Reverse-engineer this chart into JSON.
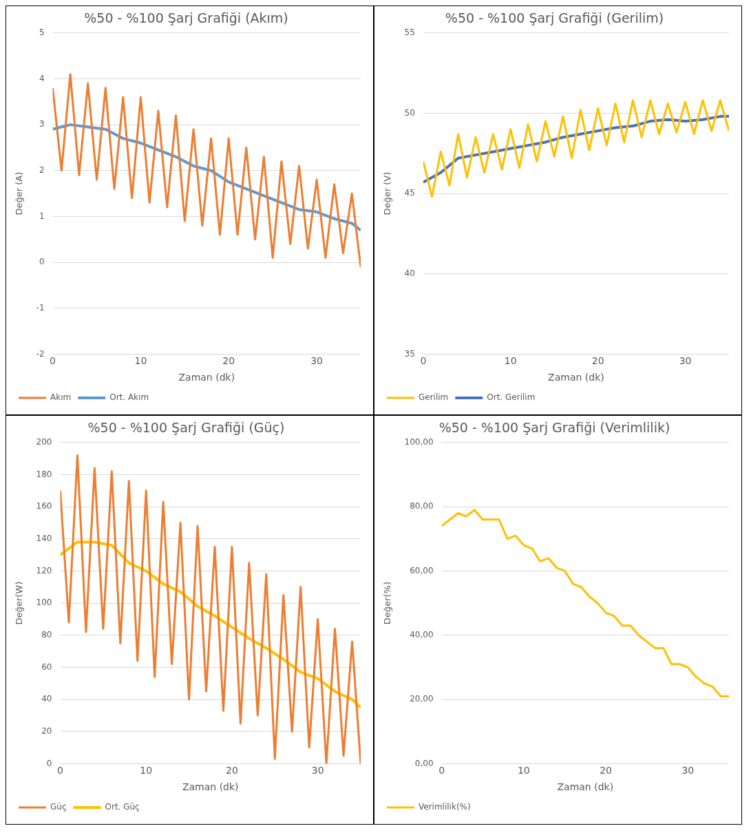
{
  "chart_data": [
    {
      "type": "line",
      "title": "%50 - %100 Şarj Grafiği (Akım)",
      "xlabel": "Zaman (dk)",
      "ylabel": "Değer (A)",
      "xlim": [
        0,
        35
      ],
      "xticks": [
        0,
        10,
        20,
        30
      ],
      "ylim": [
        -2,
        5
      ],
      "yticks": [
        -2,
        -1,
        0,
        1,
        2,
        3,
        4,
        5
      ],
      "grid": "y",
      "legend": "bottom left",
      "series": [
        {
          "name": "Akım",
          "color": "#ed7d31",
          "x": [
            0,
            1,
            2,
            3,
            4,
            5,
            6,
            7,
            8,
            9,
            10,
            11,
            12,
            13,
            14,
            15,
            16,
            17,
            18,
            19,
            20,
            21,
            22,
            23,
            24,
            25,
            26,
            27,
            28,
            29,
            30,
            31,
            32,
            33,
            34,
            35
          ],
          "values": [
            3.8,
            2.0,
            4.1,
            1.9,
            3.9,
            1.8,
            3.8,
            1.6,
            3.6,
            1.4,
            3.6,
            1.3,
            3.3,
            1.2,
            3.2,
            0.9,
            2.9,
            0.8,
            2.7,
            0.6,
            2.7,
            0.6,
            2.5,
            0.5,
            2.3,
            0.1,
            2.2,
            0.4,
            2.1,
            0.3,
            1.8,
            0.1,
            1.7,
            0.2,
            1.5,
            -0.1
          ]
        },
        {
          "name": "Ort. Akım",
          "color": "#5b9bd5",
          "x": [
            0,
            2,
            4,
            6,
            8,
            10,
            12,
            14,
            16,
            18,
            20,
            22,
            24,
            26,
            28,
            30,
            32,
            34,
            35
          ],
          "values": [
            2.9,
            3.0,
            2.95,
            2.9,
            2.7,
            2.6,
            2.45,
            2.3,
            2.1,
            2.0,
            1.75,
            1.6,
            1.45,
            1.3,
            1.15,
            1.1,
            0.95,
            0.85,
            0.7
          ]
        }
      ]
    },
    {
      "type": "line",
      "title": "%50 - %100 Şarj Grafiği (Gerilim)",
      "xlabel": "Zaman (dk)",
      "ylabel": "Değer (V)",
      "xlim": [
        0,
        35
      ],
      "xticks": [
        0,
        10,
        20,
        30
      ],
      "ylim": [
        35,
        55
      ],
      "yticks": [
        35,
        40,
        45,
        50,
        55
      ],
      "grid": "y",
      "legend": "bottom left",
      "series": [
        {
          "name": "Gerilim",
          "color": "#ffc000",
          "x": [
            0,
            1,
            2,
            3,
            4,
            5,
            6,
            7,
            8,
            9,
            10,
            11,
            12,
            13,
            14,
            15,
            16,
            17,
            18,
            19,
            20,
            21,
            22,
            23,
            24,
            25,
            26,
            27,
            28,
            29,
            30,
            31,
            32,
            33,
            34,
            35
          ],
          "values": [
            47,
            44.8,
            47.6,
            45.5,
            48.7,
            46,
            48.5,
            46.3,
            48.7,
            46.5,
            49,
            46.6,
            49.3,
            47,
            49.5,
            47.3,
            49.8,
            47.2,
            50.2,
            47.7,
            50.3,
            48,
            50.6,
            48.2,
            50.8,
            48.5,
            50.8,
            48.7,
            50.6,
            48.8,
            50.7,
            48.7,
            50.8,
            48.9,
            50.8,
            48.9
          ]
        },
        {
          "name": "Ort. Gerilim",
          "color": "#4472c4",
          "x": [
            0,
            2,
            4,
            6,
            8,
            10,
            12,
            14,
            16,
            18,
            20,
            22,
            24,
            26,
            28,
            30,
            32,
            34,
            35
          ],
          "values": [
            45.7,
            46.3,
            47.2,
            47.4,
            47.6,
            47.8,
            48,
            48.2,
            48.5,
            48.7,
            48.9,
            49.1,
            49.2,
            49.5,
            49.6,
            49.5,
            49.6,
            49.8,
            49.8
          ]
        }
      ]
    },
    {
      "type": "line",
      "title": "%50 - %100 Şarj Grafiği (Güç)",
      "xlabel": "Zaman (dk)",
      "ylabel": "Değer(W)",
      "xlim": [
        0,
        35
      ],
      "xticks": [
        0,
        10,
        20,
        30
      ],
      "ylim": [
        0,
        200
      ],
      "yticks": [
        0,
        20,
        40,
        60,
        80,
        100,
        120,
        140,
        160,
        180,
        200
      ],
      "grid": "y",
      "legend": "bottom left",
      "series": [
        {
          "name": "Güç",
          "color": "#ed7d31",
          "x": [
            0,
            1,
            2,
            3,
            4,
            5,
            6,
            7,
            8,
            9,
            10,
            11,
            12,
            13,
            14,
            15,
            16,
            17,
            18,
            19,
            20,
            21,
            22,
            23,
            24,
            25,
            26,
            27,
            28,
            29,
            30,
            31,
            32,
            33,
            34,
            35
          ],
          "values": [
            170,
            88,
            192,
            82,
            184,
            84,
            182,
            75,
            176,
            64,
            170,
            54,
            163,
            62,
            150,
            40,
            148,
            45,
            135,
            33,
            135,
            25,
            125,
            30,
            118,
            3,
            105,
            20,
            110,
            10,
            90,
            0,
            84,
            5,
            76,
            0
          ]
        },
        {
          "name": "Ort. Güç",
          "color": "#ffc000",
          "x": [
            0,
            2,
            4,
            6,
            8,
            10,
            12,
            14,
            16,
            18,
            20,
            22,
            24,
            26,
            28,
            30,
            32,
            34,
            35
          ],
          "values": [
            130,
            138,
            138,
            136,
            125,
            120,
            112,
            107,
            98,
            92,
            85,
            78,
            72,
            65,
            57,
            53,
            45,
            40,
            35
          ]
        }
      ]
    },
    {
      "type": "line",
      "title": "%50 - %100 Şarj Grafiği (Verimlilik)",
      "xlabel": "Zaman (dk)",
      "ylabel": "Değer(%)",
      "xlim": [
        0,
        35
      ],
      "xticks": [
        0,
        10,
        20,
        30
      ],
      "ylim": [
        0,
        100
      ],
      "yticks": [
        {
          "value": 0,
          "label": "0,00"
        },
        {
          "value": 20,
          "label": "20,00"
        },
        {
          "value": 40,
          "label": "40,00"
        },
        {
          "value": 60,
          "label": "60,00"
        },
        {
          "value": 80,
          "label": "80,00"
        },
        {
          "value": 100,
          "label": "100,00"
        }
      ],
      "grid": "y",
      "legend": "bottom left",
      "series": [
        {
          "name": "Verimlilik(%)",
          "color": "#ffc000",
          "x": [
            0,
            1,
            2,
            3,
            4,
            5,
            6,
            7,
            8,
            9,
            10,
            11,
            12,
            13,
            14,
            15,
            16,
            17,
            18,
            19,
            20,
            21,
            22,
            23,
            24,
            25,
            26,
            27,
            28,
            29,
            30,
            31,
            32,
            33,
            34,
            35
          ],
          "values": [
            74,
            76,
            78,
            77,
            79,
            76,
            76,
            76,
            70,
            71,
            68,
            67,
            63,
            64,
            61,
            60,
            56,
            55,
            52,
            50,
            47,
            46,
            43,
            43,
            40,
            38,
            36,
            36,
            31,
            31,
            30,
            27,
            25,
            24,
            21,
            21
          ]
        }
      ]
    }
  ]
}
